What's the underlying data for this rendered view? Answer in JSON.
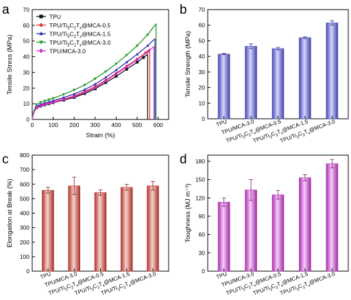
{
  "panel_letters": [
    "a",
    "b",
    "c",
    "d"
  ],
  "chart_data": [
    {
      "panel": "a",
      "type": "line",
      "xlabel": "Strain (%)",
      "ylabel": "Tensile Stress (MPa)",
      "xlim": [
        0,
        650
      ],
      "ylim": [
        0,
        70
      ],
      "xticks": [
        0,
        100,
        200,
        300,
        400,
        500,
        600
      ],
      "yticks": [
        0,
        10,
        20,
        30,
        40,
        50,
        60,
        70
      ],
      "legend_position": "top-left",
      "series": [
        {
          "name": "TPU",
          "color": "#111111",
          "marker": "square",
          "x": [
            0,
            5,
            20,
            40,
            60,
            80,
            100,
            150,
            200,
            250,
            300,
            350,
            400,
            450,
            500,
            530,
            550
          ],
          "y": [
            0,
            3.5,
            7.5,
            8.5,
            9.3,
            10,
            10.7,
            12.3,
            14,
            16.5,
            19.5,
            23.5,
            27.5,
            32,
            36.5,
            39.5,
            41.5
          ]
        },
        {
          "name": "TPU/Ti3C2Tx@MCA-0.5",
          "label_parts": [
            "TPU/Ti",
            "3",
            "C",
            "2",
            "T",
            "x",
            "@MCA-0.5"
          ],
          "color": "#e0403a",
          "marker": "circle",
          "x": [
            0,
            5,
            20,
            40,
            60,
            80,
            100,
            150,
            200,
            250,
            300,
            350,
            400,
            450,
            500,
            540,
            560
          ],
          "y": [
            0,
            3.8,
            8,
            9,
            9.8,
            10.5,
            11.2,
            13,
            15,
            17.8,
            21,
            25,
            29.5,
            34,
            38.5,
            42.5,
            45
          ]
        },
        {
          "name": "TPU/Ti3C2Tx@MCA-1.5",
          "label_parts": [
            "TPU/Ti",
            "3",
            "C",
            "2",
            "T",
            "x",
            "@MCA-1.5"
          ],
          "color": "#2a2ab8",
          "marker": "triangle-up",
          "x": [
            0,
            5,
            20,
            40,
            60,
            80,
            100,
            150,
            200,
            250,
            300,
            350,
            400,
            450,
            500,
            550,
            585
          ],
          "y": [
            0,
            4,
            8.5,
            9.6,
            10.5,
            11.2,
            12,
            14,
            16.2,
            19,
            22.5,
            26.8,
            31.5,
            36.5,
            41.5,
            47,
            51.5
          ]
        },
        {
          "name": "TPU/Ti3C2Tx@MCA-3.0",
          "label_parts": [
            "TPU/Ti",
            "3",
            "C",
            "2",
            "T",
            "x",
            "@MCA-3.0"
          ],
          "color": "#1f9a2a",
          "marker": "triangle-down",
          "x": [
            0,
            5,
            20,
            40,
            60,
            80,
            100,
            150,
            200,
            250,
            300,
            350,
            400,
            450,
            500,
            550,
            590
          ],
          "y": [
            0,
            4.5,
            9.5,
            10.8,
            11.8,
            12.6,
            13.5,
            16,
            18.8,
            22,
            26,
            30.5,
            35.5,
            41,
            47,
            54,
            61
          ]
        },
        {
          "name": "TPU/MCA-3.0",
          "color": "#d12ad1",
          "marker": "diamond",
          "x": [
            0,
            5,
            20,
            40,
            60,
            80,
            100,
            150,
            200,
            250,
            300,
            350,
            400,
            450,
            500,
            550,
            580
          ],
          "y": [
            0,
            3.6,
            7.8,
            8.8,
            9.5,
            10.2,
            10.9,
            12.6,
            14.5,
            17.2,
            20.3,
            24.5,
            29,
            33.5,
            38,
            43,
            46.5
          ]
        }
      ]
    },
    {
      "panel": "b",
      "type": "bar",
      "ylabel": "Tensile Strength (MPa)",
      "ylim": [
        0,
        70
      ],
      "yticks": [
        0,
        10,
        20,
        30,
        40,
        50,
        60,
        70
      ],
      "bar_color": "#5b5ff0",
      "categories": [
        "TPU",
        "TPU/MCA-3.0",
        "TPU/Ti3C2Tx@MCA-0.5",
        "TPU/Ti3C2Tx@MCA-1.5",
        "TPU/Ti3C2Tx@MCA-3.0"
      ],
      "values": [
        41.5,
        46.5,
        45,
        52,
        61.5
      ],
      "errors": [
        0.4,
        1.5,
        0.8,
        0.5,
        1.4
      ]
    },
    {
      "panel": "c",
      "type": "bar",
      "ylabel": "Elongation at Break (%)",
      "ylim": [
        0,
        800
      ],
      "yticks": [
        0,
        100,
        200,
        300,
        400,
        500,
        600,
        700,
        800
      ],
      "bar_color": "#e8483c",
      "categories": [
        "TPU",
        "TPU/MCA-3.0",
        "TPU/Ti3C2Tx@MCA-0.5",
        "TPU/Ti3C2Tx@MCA-1.5",
        "TPU/Ti3C2Tx@MCA-3.0"
      ],
      "values": [
        558,
        588,
        542,
        578,
        588
      ],
      "errors": [
        20,
        60,
        18,
        20,
        30
      ]
    },
    {
      "panel": "d",
      "type": "bar",
      "ylabel": "Toughness (MJ m⁻³)",
      "ylim": [
        0,
        190
      ],
      "yticks": [
        0,
        30,
        60,
        90,
        120,
        150,
        180
      ],
      "bar_color": "#e03ee8",
      "categories": [
        "TPU",
        "TPU/MCA-3.0",
        "TPU/Ti3C2Tx@MCA-0.5",
        "TPU/Ti3C2Tx@MCA-1.5",
        "TPU/Ti3C2Tx@MCA-3.0"
      ],
      "values": [
        113,
        133,
        125,
        153,
        176
      ],
      "errors": [
        7,
        17,
        7,
        5,
        7
      ]
    }
  ]
}
